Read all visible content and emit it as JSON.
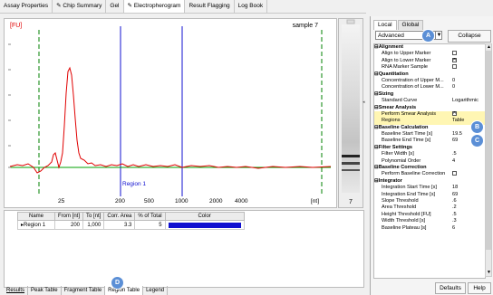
{
  "tabs": [
    "Assay Properties",
    "Chip Summary",
    "Gel",
    "Electropherogram",
    "Result Flagging",
    "Log Book"
  ],
  "plot": {
    "ylabel": "[FU]",
    "xlabel": "[nt]",
    "sample": "sample 7",
    "region_label": "Region 1",
    "xticks": [
      "25",
      "200",
      "500",
      "1000",
      "2000",
      "4000"
    ],
    "lane_number": "7"
  },
  "table": {
    "headers": [
      "Name",
      "From [nt]",
      "To [nt]",
      "Corr. Area",
      "% of Total",
      "Color"
    ],
    "rows": [
      {
        "name": "Region 1",
        "from": "200",
        "to": "1,000",
        "area": "3.3",
        "pct": "5",
        "color": "#1010d0"
      }
    ]
  },
  "bottom_tabs": [
    "Results",
    "Peak Table",
    "Fragment Table",
    "Region Table",
    "Legend"
  ],
  "panel": {
    "tabs": [
      "Local",
      "Global"
    ],
    "mode": "Advanced",
    "collapse": "Collapse",
    "sections": [
      {
        "title": "Alignment",
        "rows": [
          {
            "name": "Align to Upper Marker",
            "type": "check",
            "checked": false
          },
          {
            "name": "Align to Lower Marker",
            "type": "check",
            "checked": true
          },
          {
            "name": "RNA Marker Sample",
            "type": "check",
            "checked": false
          }
        ]
      },
      {
        "title": "Quantitation",
        "rows": [
          {
            "name": "Concentration of Upper M...",
            "type": "text",
            "value": "0"
          },
          {
            "name": "Concentration of Lower M...",
            "type": "text",
            "value": "0"
          }
        ]
      },
      {
        "title": "Sizing",
        "rows": [
          {
            "name": "Standard Curve",
            "type": "text",
            "value": "Logarithmic"
          }
        ]
      },
      {
        "title": "Smear Analysis",
        "rows": [
          {
            "name": "Perform Smear Analysis",
            "type": "check",
            "checked": true,
            "sel": true
          },
          {
            "name": "Regions",
            "type": "text",
            "value": "Table",
            "sel": true
          }
        ]
      },
      {
        "title": "Baseline Calculation",
        "rows": [
          {
            "name": "Baseline Start Time [s]",
            "type": "text",
            "value": "19.5"
          },
          {
            "name": "Baseline End Time [s]",
            "type": "text",
            "value": "69"
          }
        ]
      },
      {
        "title": "Filter Settings",
        "rows": [
          {
            "name": "Filter Width [s]",
            "type": "text",
            "value": ".5"
          },
          {
            "name": "Polynomial Order",
            "type": "text",
            "value": "4"
          }
        ]
      },
      {
        "title": "Baseline Correction",
        "rows": [
          {
            "name": "Perform Baseline Correction",
            "type": "check",
            "checked": false
          }
        ]
      },
      {
        "title": "Integrator",
        "rows": [
          {
            "name": "Integration Start Time [s]",
            "type": "text",
            "value": "18"
          },
          {
            "name": "Integration End Time [s]",
            "type": "text",
            "value": "69"
          },
          {
            "name": "Slope Threshold",
            "type": "text",
            "value": ".6"
          },
          {
            "name": "Area Threshold",
            "type": "text",
            "value": ".2"
          },
          {
            "name": "Height Threshold [FU]",
            "type": "text",
            "value": ".5"
          },
          {
            "name": "Width Threshold [s]",
            "type": "text",
            "value": ".3"
          },
          {
            "name": "Baseline Plateau [s]",
            "type": "text",
            "value": "6"
          }
        ]
      }
    ],
    "defaults": "Defaults",
    "help": "Help"
  },
  "badges": {
    "a": "A",
    "b": "B",
    "c": "C",
    "d": "D"
  },
  "colors": {
    "trace": "#e00000",
    "baseline": "#00a000",
    "region": "#1010d0",
    "marker": "#008000",
    "badge": "#5b8fd6",
    "highlight": "#fff6b3"
  }
}
